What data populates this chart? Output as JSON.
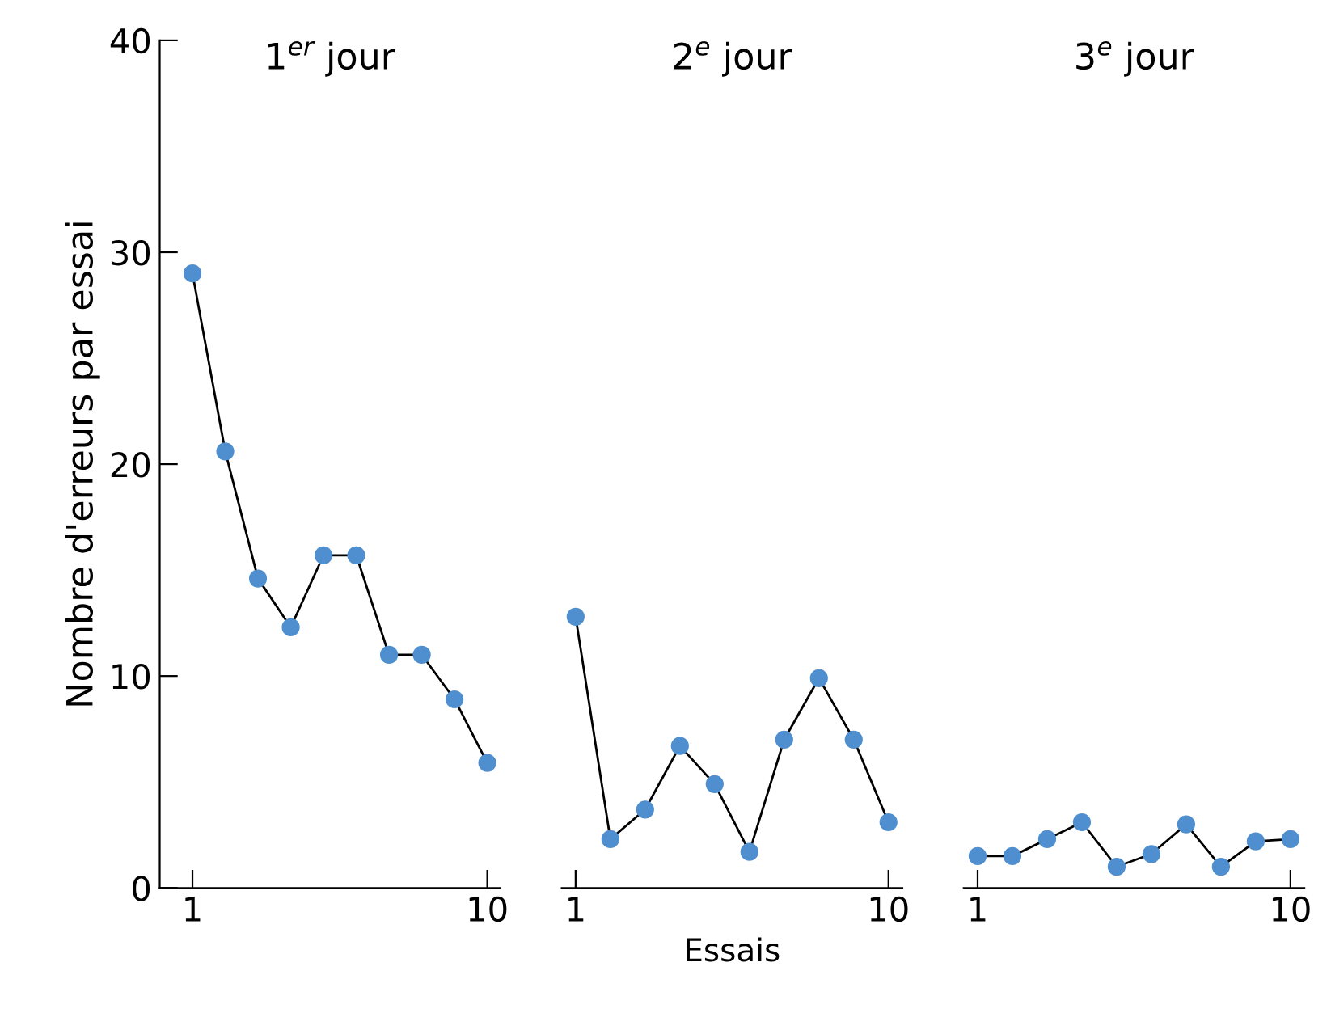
{
  "chart_data": [
    {
      "type": "line",
      "title": "1$^{er}$ jour",
      "ylabel": "Nombre d'erreurs par essai",
      "x": [
        1,
        2,
        3,
        4,
        5,
        6,
        7,
        8,
        9,
        10
      ],
      "xlim": [
        0,
        10.4
      ],
      "xticks": [
        1,
        10
      ],
      "ylim": [
        0,
        40
      ],
      "yticks": [
        0,
        10,
        20,
        30,
        40
      ],
      "marker": "circle",
      "grid": false,
      "series": [
        {
          "color": "#4f8fcf",
          "values": [
            29,
            20.6,
            14.6,
            12.3,
            15.7,
            15.7,
            11.0,
            11.0,
            8.9,
            5.9
          ]
        }
      ]
    },
    {
      "type": "line",
      "title": "2$^{e}$ jour",
      "xlabel": "Essais",
      "x": [
        1,
        2,
        3,
        4,
        5,
        6,
        7,
        8,
        9,
        10
      ],
      "xlim": [
        0.6,
        10.4
      ],
      "xticks": [
        1,
        10
      ],
      "ylim": [
        0,
        40
      ],
      "tick_labels": "x",
      "marker": "circle",
      "grid": false,
      "series": [
        {
          "color": "#4f8fcf",
          "values": [
            12.8,
            2.3,
            3.7,
            6.7,
            4.9,
            1.7,
            7.0,
            9.9,
            7.0,
            3.1
          ]
        }
      ]
    },
    {
      "type": "line",
      "title": "3$^{e}$ jour",
      "x": [
        1,
        2,
        3,
        4,
        5,
        6,
        7,
        8,
        9,
        10
      ],
      "xlim": [
        0.6,
        10.4
      ],
      "xticks": [
        1,
        10
      ],
      "ylim": [
        0,
        40
      ],
      "tick_labels": "x",
      "marker": "circle",
      "grid": false,
      "series": [
        {
          "color": "#4f8fcf",
          "values": [
            1.5,
            1.5,
            2.3,
            3.1,
            1.0,
            1.6,
            3.0,
            1.0,
            2.2,
            2.3
          ]
        }
      ]
    }
  ]
}
